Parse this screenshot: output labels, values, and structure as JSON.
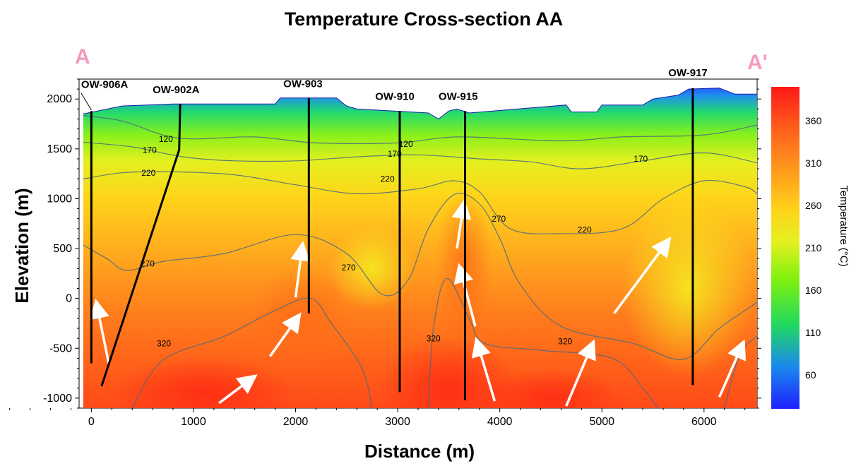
{
  "chart_data": {
    "type": "heatmap",
    "title": "Temperature Cross-section AA",
    "xlabel": "Distance (m)",
    "ylabel": "Elevation (m)",
    "xlim": [
      -120,
      6520
    ],
    "ylim": [
      -1100,
      2200
    ],
    "x_ticks": [
      0,
      1000,
      2000,
      3000,
      4000,
      5000,
      6000
    ],
    "y_ticks": [
      -1000,
      -500,
      0,
      500,
      1000,
      1500,
      2000
    ],
    "section_endpoints": {
      "start": "A",
      "end": "A'"
    },
    "colorbar": {
      "label": "Temperature (°C)",
      "ticks": [
        60,
        110,
        160,
        210,
        260,
        310,
        360
      ],
      "range": [
        20,
        400
      ]
    },
    "surface_profile": [
      [
        -80,
        1850
      ],
      [
        300,
        1930
      ],
      [
        800,
        1950
      ],
      [
        1800,
        1950
      ],
      [
        1850,
        2010
      ],
      [
        2400,
        2010
      ],
      [
        2500,
        1930
      ],
      [
        2600,
        1900
      ],
      [
        3300,
        1860
      ],
      [
        3400,
        1800
      ],
      [
        3500,
        1880
      ],
      [
        3580,
        1900
      ],
      [
        3700,
        1860
      ],
      [
        4650,
        1940
      ],
      [
        4700,
        1870
      ],
      [
        4950,
        1870
      ],
      [
        5000,
        1940
      ],
      [
        5400,
        1940
      ],
      [
        5500,
        2000
      ],
      [
        5750,
        2040
      ],
      [
        5850,
        2100
      ],
      [
        6150,
        2110
      ],
      [
        6300,
        2050
      ],
      [
        6520,
        2050
      ]
    ],
    "contours": [
      {
        "level": 120,
        "points": [
          [
            -120,
            1840
          ],
          [
            300,
            1780
          ],
          [
            700,
            1640
          ],
          [
            1000,
            1600
          ],
          [
            1600,
            1620
          ],
          [
            2200,
            1560
          ],
          [
            3000,
            1560
          ],
          [
            3600,
            1620
          ],
          [
            4600,
            1580
          ],
          [
            5200,
            1620
          ],
          [
            6000,
            1640
          ],
          [
            6520,
            1740
          ]
        ]
      },
      {
        "level": 170,
        "points": [
          [
            -120,
            1570
          ],
          [
            400,
            1520
          ],
          [
            900,
            1420
          ],
          [
            1400,
            1380
          ],
          [
            2000,
            1380
          ],
          [
            2600,
            1420
          ],
          [
            3200,
            1440
          ],
          [
            3800,
            1400
          ],
          [
            4300,
            1370
          ],
          [
            4800,
            1300
          ],
          [
            5400,
            1380
          ],
          [
            6000,
            1460
          ],
          [
            6520,
            1360
          ]
        ]
      },
      {
        "level": 220,
        "points": [
          [
            -120,
            1190
          ],
          [
            300,
            1260
          ],
          [
            800,
            1270
          ],
          [
            1400,
            1240
          ],
          [
            2000,
            1140
          ],
          [
            2600,
            1050
          ],
          [
            3200,
            1100
          ],
          [
            3550,
            1180
          ],
          [
            3800,
            1070
          ],
          [
            4100,
            700
          ],
          [
            4600,
            650
          ],
          [
            5200,
            700
          ],
          [
            5600,
            1000
          ],
          [
            6000,
            1180
          ],
          [
            6400,
            1120
          ],
          [
            6520,
            1050
          ]
        ]
      },
      {
        "level": 270,
        "points": [
          [
            -120,
            560
          ],
          [
            150,
            400
          ],
          [
            350,
            280
          ],
          [
            700,
            370
          ],
          [
            1300,
            450
          ],
          [
            2000,
            640
          ],
          [
            2500,
            450
          ],
          [
            2850,
            40
          ],
          [
            3100,
            180
          ],
          [
            3300,
            700
          ],
          [
            3550,
            1040
          ],
          [
            3800,
            950
          ],
          [
            4000,
            600
          ],
          [
            4200,
            140
          ],
          [
            4600,
            -280
          ],
          [
            5300,
            -450
          ],
          [
            5800,
            -610
          ],
          [
            6150,
            -300
          ],
          [
            6520,
            -40
          ]
        ]
      },
      {
        "level": 320,
        "points": [
          [
            400,
            -1100
          ],
          [
            700,
            -620
          ],
          [
            1300,
            -380
          ],
          [
            1800,
            -120
          ],
          [
            2150,
            0
          ],
          [
            2350,
            -250
          ],
          [
            2650,
            -700
          ],
          [
            2750,
            -1100
          ]
        ]
      },
      {
        "level": 320,
        "points": [
          [
            3300,
            -1100
          ],
          [
            3350,
            -300
          ],
          [
            3480,
            200
          ],
          [
            3700,
            -200
          ],
          [
            3850,
            -450
          ],
          [
            4400,
            -520
          ],
          [
            5100,
            -600
          ],
          [
            5400,
            -900
          ],
          [
            5550,
            -1100
          ]
        ]
      },
      {
        "level": 320,
        "points": [
          [
            6200,
            -1100
          ],
          [
            6350,
            -560
          ],
          [
            6520,
            -380
          ]
        ]
      }
    ],
    "contour_labels": [
      {
        "text": "120",
        "x": 730,
        "y": 1570
      },
      {
        "text": "170",
        "x": 570,
        "y": 1460
      },
      {
        "text": "220",
        "x": 560,
        "y": 1230
      },
      {
        "text": "170",
        "x": 2970,
        "y": 1420
      },
      {
        "text": "120",
        "x": 3080,
        "y": 1520
      },
      {
        "text": "220",
        "x": 2900,
        "y": 1170
      },
      {
        "text": "270",
        "x": 3990,
        "y": 770
      },
      {
        "text": "270",
        "x": 550,
        "y": 320
      },
      {
        "text": "270",
        "x": 2520,
        "y": 280
      },
      {
        "text": "170",
        "x": 5380,
        "y": 1370
      },
      {
        "text": "220",
        "x": 4830,
        "y": 660
      },
      {
        "text": "320",
        "x": 710,
        "y": -480
      },
      {
        "text": "320",
        "x": 3350,
        "y": -430
      },
      {
        "text": "320",
        "x": 4640,
        "y": -460
      }
    ],
    "wells": [
      {
        "name": "OW-906A",
        "top": [
          0,
          1880
        ],
        "bottom": [
          0,
          -650
        ],
        "label_pos": [
          -100,
          2110
        ]
      },
      {
        "name": "OW-902A",
        "top": [
          870,
          1950
        ],
        "mid": [
          860,
          1490
        ],
        "bottom": [
          100,
          -880
        ],
        "label_pos": [
          600,
          2060
        ]
      },
      {
        "name": "OW-903",
        "top": [
          2130,
          2010
        ],
        "bottom": [
          2130,
          -150
        ],
        "label_pos": [
          1880,
          2120
        ]
      },
      {
        "name": "OW-910",
        "top": [
          3020,
          1880
        ],
        "bottom": [
          3020,
          -940
        ],
        "label_pos": [
          2780,
          1990
        ]
      },
      {
        "name": "OW-915",
        "top": [
          3660,
          1880
        ],
        "bottom": [
          3660,
          -1020
        ],
        "label_pos": [
          3400,
          1990
        ]
      },
      {
        "name": "OW-917",
        "top": [
          5890,
          2110
        ],
        "bottom": [
          5890,
          -870
        ],
        "label_pos": [
          5650,
          2230
        ]
      }
    ],
    "flow_arrows": [
      {
        "from": [
          170,
          -650
        ],
        "to": [
          60,
          -100
        ]
      },
      {
        "from": [
          1250,
          -1050
        ],
        "to": [
          1550,
          -820
        ]
      },
      {
        "from": [
          1750,
          -580
        ],
        "to": [
          2000,
          -220
        ]
      },
      {
        "from": [
          2000,
          10
        ],
        "to": [
          2060,
          480
        ]
      },
      {
        "from": [
          3580,
          500
        ],
        "to": [
          3640,
          900
        ]
      },
      {
        "from": [
          3760,
          -280
        ],
        "to": [
          3620,
          260
        ]
      },
      {
        "from": [
          3950,
          -1030
        ],
        "to": [
          3790,
          -480
        ]
      },
      {
        "from": [
          4650,
          -1080
        ],
        "to": [
          4890,
          -500
        ]
      },
      {
        "from": [
          5120,
          -150
        ],
        "to": [
          5620,
          540
        ]
      },
      {
        "from": [
          6150,
          -990
        ],
        "to": [
          6360,
          -500
        ]
      }
    ]
  }
}
